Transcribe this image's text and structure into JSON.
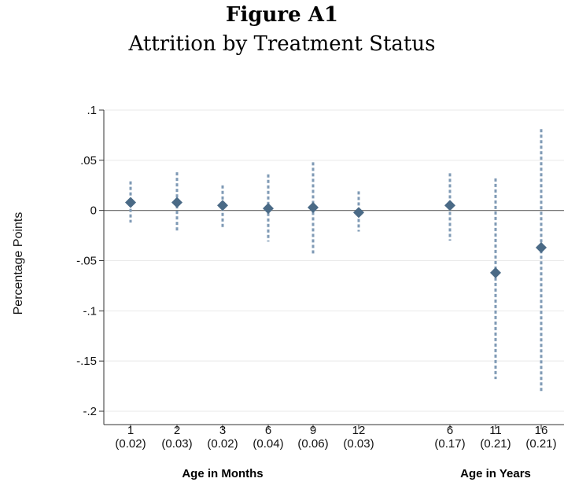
{
  "figure": {
    "title": "Figure A1",
    "subtitle": "Attrition by Treatment Status"
  },
  "chart_data": {
    "type": "scatter",
    "title": "Attrition by Treatment Status",
    "ylabel": "Percentage Points",
    "ylim": [
      -0.2,
      0.1
    ],
    "y_ticks": [
      0.1,
      0.05,
      0,
      -0.05,
      -0.1,
      -0.15,
      -0.2
    ],
    "y_tick_labels": [
      ".1",
      ".05",
      "0",
      "-.05",
      "-.1",
      "-.15",
      "-.2"
    ],
    "grid": true,
    "zero_line": true,
    "marker_color": "#4a6a86",
    "ci_color": "#7f9ab5",
    "groups": [
      {
        "label": "Age in Months",
        "categories": [
          "1",
          "2",
          "3",
          "6",
          "9",
          "12"
        ]
      },
      {
        "label": "Age in Years",
        "categories": [
          "6",
          "11",
          "16"
        ]
      }
    ],
    "points": [
      {
        "category": "1",
        "se": "(0.02)",
        "estimate": 0.008,
        "ci_low": -0.012,
        "ci_high": 0.029
      },
      {
        "category": "2",
        "se": "(0.03)",
        "estimate": 0.008,
        "ci_low": -0.021,
        "ci_high": 0.038
      },
      {
        "category": "3",
        "se": "(0.02)",
        "estimate": 0.005,
        "ci_low": -0.017,
        "ci_high": 0.025
      },
      {
        "category": "6",
        "se": "(0.04)",
        "estimate": 0.002,
        "ci_low": -0.031,
        "ci_high": 0.036
      },
      {
        "category": "9",
        "se": "(0.06)",
        "estimate": 0.003,
        "ci_low": -0.044,
        "ci_high": 0.048
      },
      {
        "category": "12",
        "se": "(0.03)",
        "estimate": -0.002,
        "ci_low": -0.021,
        "ci_high": 0.019
      },
      {
        "category": "6",
        "se": "(0.17)",
        "estimate": 0.005,
        "ci_low": -0.03,
        "ci_high": 0.037
      },
      {
        "category": "11",
        "se": "(0.21)",
        "estimate": -0.062,
        "ci_low": -0.168,
        "ci_high": 0.032
      },
      {
        "category": "16",
        "se": "(0.21)",
        "estimate": -0.037,
        "ci_low": -0.182,
        "ci_high": 0.081
      }
    ]
  }
}
